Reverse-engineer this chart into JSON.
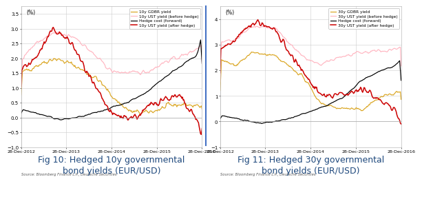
{
  "fig10_title": "Fig 10: Hedged 10y governmental\nbond yields (EUR/USD)",
  "fig11_title": "Fig 11: Hedged 30y governmental\nbond yields (EUR/USD)",
  "source_text": "Source: Bloomberg Finance L.P., Deutsche Securities",
  "ylabel": "(%)",
  "colors": {
    "gdbr": "#DAA520",
    "ust_before": "#FFB6C1",
    "hedge": "#000000",
    "ust_after": "#CC0000"
  },
  "fig10": {
    "legend": [
      "10y GDBR yield",
      "10y UST yield (before hedge)",
      "Hedge cost (forward)",
      "10y UST yield (after hedge)"
    ],
    "ylim": [
      -1.0,
      3.75
    ],
    "yticks": [
      -1.0,
      -0.5,
      0.0,
      0.5,
      1.0,
      1.5,
      2.0,
      2.5,
      3.0,
      3.5
    ]
  },
  "fig11": {
    "legend": [
      "30y GDBR yield",
      "30y UST yield (before hedge)",
      "Hedge cost (forward)",
      "30y UST yield (after hedge)"
    ],
    "ylim": [
      -1.0,
      4.5
    ],
    "yticks": [
      -1.0,
      0.0,
      1.0,
      2.0,
      3.0,
      4.0
    ]
  },
  "x_labels": [
    "28-Dec-2012",
    "28-Dec-2013",
    "28-Dec-2014",
    "28-Dec-2015",
    "28-Dec-2016"
  ],
  "n_points": 260
}
